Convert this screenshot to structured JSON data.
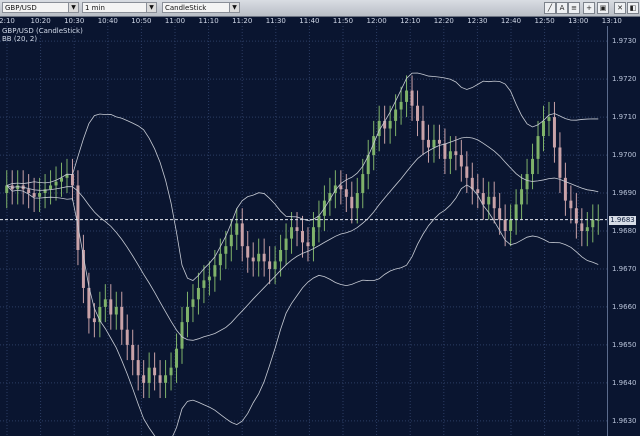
{
  "toolbar": {
    "symbol": "GBP/USD",
    "interval": "1 min",
    "chart_type": "CandleStick"
  },
  "time_labels": [
    "2:10",
    "10:20",
    "10:30",
    "10:40",
    "10:50",
    "11:00",
    "11:10",
    "11:20",
    "11:30",
    "11:40",
    "11:50",
    "12:00",
    "12:10",
    "12:20",
    "12:30",
    "12:40",
    "12:50",
    "13:00",
    "13:10"
  ],
  "price_labels": [
    "1.9730",
    "1.9720",
    "1.9710",
    "1.9700",
    "1.9690",
    "1.9680",
    "1.9670",
    "1.9660",
    "1.9650",
    "1.9640",
    "1.9630"
  ],
  "current_price": "1.9683",
  "legend": {
    "line1": "GBP/USD (CandleStick)",
    "line2": "BB (20, 2)"
  },
  "chart_data": {
    "type": "candlestick",
    "symbol": "GBP/USD",
    "interval": "1 min",
    "ylim": [
      1.9626,
      1.9734
    ],
    "current_price": 1.9683,
    "close": [
      1.9692,
      1.9691,
      1.9692,
      1.9691,
      1.969,
      1.9689,
      1.969,
      1.9691,
      1.9692,
      1.9693,
      1.9694,
      1.9695,
      1.9692,
      1.9675,
      1.9665,
      1.9657,
      1.9656,
      1.966,
      1.9662,
      1.9658,
      1.966,
      1.9654,
      1.965,
      1.9646,
      1.9642,
      1.964,
      1.9644,
      1.9642,
      1.964,
      1.9642,
      1.9644,
      1.9649,
      1.9656,
      1.966,
      1.9662,
      1.9665,
      1.9667,
      1.9668,
      1.9671,
      1.9674,
      1.9676,
      1.9679,
      1.9682,
      1.9676,
      1.9673,
      1.9672,
      1.9674,
      1.9672,
      1.967,
      1.9672,
      1.9675,
      1.9678,
      1.9681,
      1.968,
      1.9677,
      1.9676,
      1.9681,
      1.9684,
      1.9688,
      1.969,
      1.9692,
      1.9691,
      1.9689,
      1.9686,
      1.969,
      1.9695,
      1.97,
      1.9705,
      1.9709,
      1.9707,
      1.9709,
      1.9712,
      1.9714,
      1.9717,
      1.9713,
      1.9709,
      1.9704,
      1.9702,
      1.9704,
      1.9703,
      1.9699,
      1.9701,
      1.97,
      1.9697,
      1.9694,
      1.9691,
      1.969,
      1.9687,
      1.9689,
      1.9686,
      1.9683,
      1.968,
      1.9683,
      1.9687,
      1.9691,
      1.9695,
      1.9699,
      1.9705,
      1.9709,
      1.971,
      1.9702,
      1.9694,
      1.9688,
      1.9686,
      1.9682,
      1.968,
      1.9681,
      1.9683,
      1.9683
    ]
  }
}
